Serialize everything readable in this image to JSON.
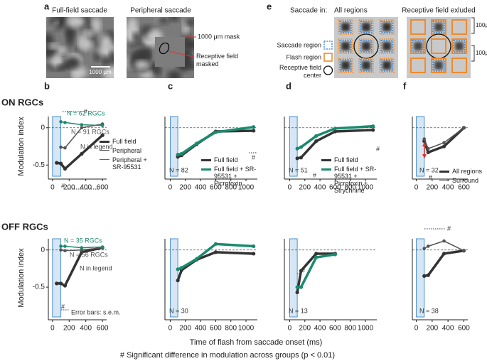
{
  "panel_a": {
    "label": "a",
    "titles": [
      "Full-field saccade",
      "Peripheral saccade"
    ],
    "mask_label": "1000 μm mask",
    "masked_label": "Receptive field masked",
    "scale_bar": "1000 μm"
  },
  "panel_e": {
    "label": "e",
    "title_prefix": "Saccade in:",
    "titles": [
      "All regions",
      "Receptive field exluded"
    ],
    "legend": [
      "Saccade region",
      "Flash region",
      "Receptive field center"
    ],
    "scale_labels": [
      "100μm",
      "100μm"
    ]
  },
  "panel_labels": [
    "b",
    "c",
    "d",
    "f"
  ],
  "row_labels": [
    "ON RGCs",
    "OFF RGCs"
  ],
  "x_label": "Time of flash from saccade onset (ms)",
  "footnote": "# Significant difference in modulation across groups (p < 0.01)",
  "chart_data": [
    {
      "type": "line",
      "x": [
        50,
        100,
        150,
        350,
        600
      ],
      "xlim": [
        -50,
        650
      ],
      "xticks": [
        0,
        200,
        400,
        600
      ],
      "ylim": [
        -0.65,
        0.15
      ],
      "yticks": [
        -0.5,
        0
      ],
      "y_label": "Modulation index",
      "reference_y": 0,
      "highlight_x": [
        0,
        100
      ],
      "legend": "lower right",
      "series": [
        {
          "name": "Full field",
          "color": "#333333",
          "style": "thick",
          "values": [
            -0.47,
            -0.48,
            -0.55,
            -0.35,
            -0.1
          ]
        },
        {
          "name": "Peripheral",
          "color": "#555555",
          "style": "thin",
          "values": [
            null,
            -0.26,
            -0.27,
            0.0,
            0.05
          ]
        },
        {
          "name": "Peripheral + SR-95531",
          "color": "#1a8a6e",
          "style": "thin",
          "values": [
            null,
            0.08,
            0.07,
            0.04,
            0.03
          ]
        }
      ],
      "annotations": [
        "N = 62 RGCs",
        "N = 91 RGCs",
        "N in legend",
        "#",
        "#"
      ]
    },
    {
      "type": "line",
      "x": [
        100,
        150,
        350,
        600,
        1100
      ],
      "xlim": [
        -70,
        1150
      ],
      "xticks": [
        0,
        200,
        400,
        600,
        800,
        1000
      ],
      "ylim": [
        -0.65,
        0.15
      ],
      "reference_y": 0,
      "highlight_x": [
        0,
        100
      ],
      "legend": "lower right",
      "series": [
        {
          "name": "Full field",
          "color": "#333333",
          "style": "thick",
          "values": [
            -0.39,
            -0.37,
            -0.22,
            -0.05,
            -0.04
          ]
        },
        {
          "name": "Full field + SR-95531 + Picrotoxin",
          "color": "#1a8a6e",
          "style": "thick",
          "values": [
            -0.36,
            -0.35,
            -0.21,
            -0.06,
            0.01
          ]
        }
      ],
      "annotations": [
        "N = 82",
        "#"
      ]
    },
    {
      "type": "line",
      "x": [
        100,
        150,
        350,
        600,
        1100
      ],
      "xlim": [
        -70,
        1150
      ],
      "xticks": [
        0,
        200,
        400,
        600,
        800,
        1000
      ],
      "ylim": [
        -0.65,
        0.15
      ],
      "reference_y": 0,
      "highlight_x": [
        0,
        100
      ],
      "legend": "lower right",
      "series": [
        {
          "name": "Full field",
          "color": "#333333",
          "style": "thick",
          "values": [
            -0.41,
            -0.4,
            -0.18,
            -0.05,
            -0.03
          ]
        },
        {
          "name": "Full field + SR-95531 + Picrotoxin + Strychnine",
          "color": "#1a8a6e",
          "style": "thick",
          "values": [
            -0.28,
            -0.26,
            -0.11,
            -0.01,
            0.02
          ]
        }
      ],
      "annotations": [
        "N = 51",
        "#",
        "#"
      ]
    },
    {
      "type": "line",
      "x": [
        100,
        150,
        350,
        600
      ],
      "xlim": [
        -50,
        650
      ],
      "xticks": [
        0,
        200,
        400,
        600
      ],
      "ylim": [
        -0.65,
        0.15
      ],
      "reference_y": 0,
      "highlight_x": [
        0,
        100
      ],
      "legend": "lower right",
      "series": [
        {
          "name": "All regions",
          "color": "#333333",
          "style": "thick",
          "values": [
            -0.18,
            -0.33,
            -0.25,
            0.0
          ]
        },
        {
          "name": "Surround",
          "color": "#555555",
          "style": "thin",
          "values": [
            -0.15,
            -0.28,
            -0.2,
            0.0
          ]
        }
      ],
      "annotations": [
        "N = 32",
        "#"
      ]
    },
    {
      "type": "line",
      "x": [
        50,
        100,
        150,
        350,
        600
      ],
      "xlim": [
        -50,
        650
      ],
      "xticks": [
        0,
        200,
        400,
        600
      ],
      "ylim": [
        -0.9,
        0.15
      ],
      "yticks": [
        -0.5,
        0
      ],
      "y_label": "Modulation index",
      "reference_y": 0,
      "highlight_x": [
        0,
        100
      ],
      "series": [
        {
          "color": "#333333",
          "style": "thick",
          "values": [
            -0.45,
            -0.45,
            -0.48,
            -0.03,
            0.03
          ]
        },
        {
          "color": "#555555",
          "style": "thin",
          "values": [
            null,
            0.0,
            -0.01,
            0.0,
            0.03
          ]
        },
        {
          "color": "#1a8a6e",
          "style": "thin",
          "values": [
            null,
            0.05,
            0.05,
            0.03,
            0.04
          ]
        }
      ],
      "annotations": [
        "N = 35 RGCs",
        "N = 56 RGCs",
        "N in legend",
        "#",
        "Error bars: s.e.m."
      ]
    },
    {
      "type": "line",
      "x": [
        100,
        150,
        350,
        600,
        1100
      ],
      "xlim": [
        -70,
        1150
      ],
      "xticks": [
        0,
        200,
        400,
        600,
        800,
        1000
      ],
      "ylim": [
        -0.9,
        0.15
      ],
      "reference_y": 0,
      "highlight_x": [
        0,
        100
      ],
      "series": [
        {
          "color": "#333333",
          "style": "thick",
          "values": [
            -0.41,
            -0.27,
            -0.13,
            -0.03,
            -0.05
          ]
        },
        {
          "color": "#1a8a6e",
          "style": "thick",
          "values": [
            -0.26,
            -0.24,
            -0.12,
            0.08,
            0.05
          ]
        }
      ],
      "annotations": [
        "N = 30"
      ]
    },
    {
      "type": "line",
      "x": [
        100,
        150,
        350,
        600
      ],
      "xlim": [
        -70,
        1150
      ],
      "xticks": [
        0,
        200,
        400,
        600,
        800,
        1000
      ],
      "ylim": [
        -0.9,
        0.15
      ],
      "reference_y": 0,
      "highlight_x": [
        0,
        100
      ],
      "series": [
        {
          "color": "#333333",
          "style": "thick",
          "values": [
            -0.57,
            -0.28,
            -0.05,
            -0.05
          ]
        },
        {
          "color": "#1a8a6e",
          "style": "thick",
          "values": [
            -0.5,
            -0.5,
            -0.1,
            -0.06
          ]
        }
      ],
      "annotations": [
        "N = 13",
        "#"
      ]
    },
    {
      "type": "line",
      "x": [
        100,
        150,
        350,
        600
      ],
      "xlim": [
        -50,
        650
      ],
      "xticks": [
        0,
        200,
        400,
        600
      ],
      "ylim": [
        -0.9,
        0.15
      ],
      "reference_y": 0,
      "highlight_x": [
        0,
        100
      ],
      "series": [
        {
          "color": "#333333",
          "style": "thick",
          "values": [
            -0.35,
            -0.34,
            -0.05,
            -0.01
          ]
        },
        {
          "color": "#555555",
          "style": "thin",
          "values": [
            0.02,
            0.05,
            0.12,
            -0.01
          ]
        }
      ],
      "annotations": [
        "N = 38",
        "#"
      ]
    }
  ]
}
